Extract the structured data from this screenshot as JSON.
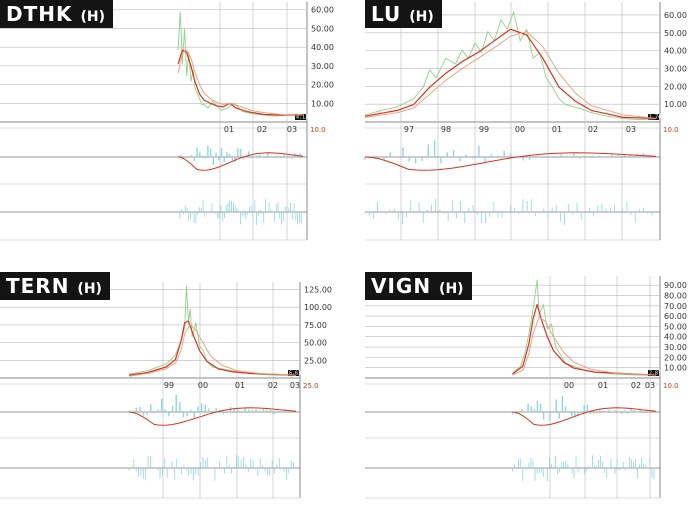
{
  "chart_data": [
    {
      "type": "line",
      "title": "DTHK",
      "title_suffix": "(H)",
      "y_ticks": [
        "10.00",
        "20.00",
        "30.00",
        "40.00",
        "50.00",
        "60.00"
      ],
      "ylim": [
        0,
        62
      ],
      "x_ticks": [
        "01",
        "02",
        "03"
      ],
      "scale_label": "10.0",
      "last_value_label": "4.13",
      "series": [
        {
          "values": [
            [
              0.1,
              0.62
            ],
            [
              0.11,
              0.95
            ],
            [
              0.12,
              0.5
            ],
            [
              0.13,
              0.8
            ],
            [
              0.14,
              0.4
            ],
            [
              0.15,
              0.6
            ],
            [
              0.16,
              0.35
            ],
            [
              0.17,
              0.45
            ],
            [
              0.18,
              0.28
            ],
            [
              0.19,
              0.25
            ],
            [
              0.2,
              0.2
            ],
            [
              0.21,
              0.15
            ],
            [
              0.22,
              0.15
            ],
            [
              0.24,
              0.12
            ],
            [
              0.26,
              0.18
            ],
            [
              0.28,
              0.14
            ],
            [
              0.3,
              0.1
            ],
            [
              0.33,
              0.12
            ],
            [
              0.36,
              0.16
            ],
            [
              0.4,
              0.09
            ],
            [
              0.45,
              0.07
            ],
            [
              0.5,
              0.06
            ],
            [
              0.55,
              0.05
            ],
            [
              0.6,
              0.06
            ],
            [
              0.65,
              0.07
            ],
            [
              0.68,
              0.06
            ]
          ]
        },
        {
          "values": [
            [
              0.1,
              0.5
            ],
            [
              0.12,
              0.62
            ],
            [
              0.14,
              0.6
            ],
            [
              0.16,
              0.48
            ],
            [
              0.18,
              0.34
            ],
            [
              0.2,
              0.24
            ],
            [
              0.22,
              0.19
            ],
            [
              0.25,
              0.16
            ],
            [
              0.28,
              0.14
            ],
            [
              0.31,
              0.13
            ],
            [
              0.34,
              0.16
            ],
            [
              0.37,
              0.12
            ],
            [
              0.42,
              0.09
            ],
            [
              0.5,
              0.065
            ],
            [
              0.58,
              0.06
            ],
            [
              0.68,
              0.06
            ]
          ]
        },
        {
          "values": [
            [
              0.1,
              0.42
            ],
            [
              0.12,
              0.6
            ],
            [
              0.14,
              0.62
            ],
            [
              0.16,
              0.55
            ],
            [
              0.18,
              0.42
            ],
            [
              0.2,
              0.32
            ],
            [
              0.22,
              0.25
            ],
            [
              0.25,
              0.2
            ],
            [
              0.28,
              0.17
            ],
            [
              0.31,
              0.15
            ],
            [
              0.34,
              0.16
            ],
            [
              0.38,
              0.14
            ],
            [
              0.44,
              0.1
            ],
            [
              0.5,
              0.08
            ],
            [
              0.58,
              0.065
            ],
            [
              0.68,
              0.06
            ]
          ]
        }
      ]
    },
    {
      "type": "line",
      "title": "LU",
      "title_suffix": "(H)",
      "y_ticks": [
        "10.00",
        "20.00",
        "30.00",
        "40.00",
        "50.00",
        "60.00"
      ],
      "ylim": [
        0,
        65
      ],
      "x_ticks": [
        "97",
        "98",
        "99",
        "00",
        "01",
        "02",
        "03"
      ],
      "scale_label": "10.0",
      "last_value_label": "1.74",
      "series": [
        {
          "values": [
            [
              0.0,
              0.06
            ],
            [
              0.05,
              0.1
            ],
            [
              0.1,
              0.13
            ],
            [
              0.15,
              0.2
            ],
            [
              0.18,
              0.3
            ],
            [
              0.2,
              0.45
            ],
            [
              0.22,
              0.38
            ],
            [
              0.25,
              0.55
            ],
            [
              0.28,
              0.5
            ],
            [
              0.3,
              0.62
            ],
            [
              0.32,
              0.55
            ],
            [
              0.34,
              0.68
            ],
            [
              0.36,
              0.6
            ],
            [
              0.38,
              0.78
            ],
            [
              0.4,
              0.7
            ],
            [
              0.42,
              0.88
            ],
            [
              0.44,
              0.8
            ],
            [
              0.46,
              0.95
            ],
            [
              0.48,
              0.7
            ],
            [
              0.5,
              0.8
            ],
            [
              0.52,
              0.55
            ],
            [
              0.54,
              0.6
            ],
            [
              0.56,
              0.38
            ],
            [
              0.58,
              0.3
            ],
            [
              0.6,
              0.2
            ],
            [
              0.62,
              0.15
            ],
            [
              0.66,
              0.12
            ],
            [
              0.7,
              0.08
            ],
            [
              0.75,
              0.05
            ],
            [
              0.8,
              0.03
            ],
            [
              0.85,
              0.02
            ],
            [
              0.9,
              0.03
            ]
          ]
        },
        {
          "values": [
            [
              0.0,
              0.05
            ],
            [
              0.1,
              0.1
            ],
            [
              0.15,
              0.15
            ],
            [
              0.2,
              0.3
            ],
            [
              0.25,
              0.42
            ],
            [
              0.3,
              0.52
            ],
            [
              0.35,
              0.6
            ],
            [
              0.4,
              0.7
            ],
            [
              0.45,
              0.8
            ],
            [
              0.5,
              0.75
            ],
            [
              0.55,
              0.55
            ],
            [
              0.6,
              0.3
            ],
            [
              0.65,
              0.18
            ],
            [
              0.7,
              0.1
            ],
            [
              0.8,
              0.04
            ],
            [
              0.9,
              0.03
            ]
          ]
        },
        {
          "values": [
            [
              0.0,
              0.04
            ],
            [
              0.1,
              0.08
            ],
            [
              0.15,
              0.12
            ],
            [
              0.2,
              0.24
            ],
            [
              0.25,
              0.36
            ],
            [
              0.3,
              0.46
            ],
            [
              0.35,
              0.55
            ],
            [
              0.4,
              0.64
            ],
            [
              0.45,
              0.74
            ],
            [
              0.5,
              0.78
            ],
            [
              0.55,
              0.65
            ],
            [
              0.6,
              0.42
            ],
            [
              0.65,
              0.25
            ],
            [
              0.7,
              0.14
            ],
            [
              0.8,
              0.06
            ],
            [
              0.9,
              0.03
            ]
          ]
        }
      ]
    },
    {
      "type": "line",
      "title": "TERN",
      "title_suffix": "(H)",
      "y_ticks": [
        "25.00",
        "50.00",
        "75.00",
        "100.00",
        "125.00"
      ],
      "ylim": [
        0,
        130
      ],
      "x_ticks": [
        "99",
        "00",
        "01",
        "02",
        "03"
      ],
      "scale_label": "25.0",
      "last_value_label": "6.63",
      "series": [
        {
          "values": [
            [
              0.0,
              0.04
            ],
            [
              0.1,
              0.08
            ],
            [
              0.2,
              0.15
            ],
            [
              0.25,
              0.25
            ],
            [
              0.28,
              0.4
            ],
            [
              0.3,
              0.55
            ],
            [
              0.31,
              1.0
            ],
            [
              0.32,
              0.6
            ],
            [
              0.33,
              0.75
            ],
            [
              0.34,
              0.45
            ],
            [
              0.36,
              0.6
            ],
            [
              0.38,
              0.35
            ],
            [
              0.4,
              0.3
            ],
            [
              0.42,
              0.18
            ],
            [
              0.45,
              0.12
            ],
            [
              0.5,
              0.1
            ],
            [
              0.55,
              0.08
            ],
            [
              0.6,
              0.06
            ],
            [
              0.7,
              0.04
            ],
            [
              0.8,
              0.03
            ],
            [
              0.9,
              0.03
            ]
          ]
        },
        {
          "values": [
            [
              0.0,
              0.03
            ],
            [
              0.1,
              0.06
            ],
            [
              0.2,
              0.12
            ],
            [
              0.25,
              0.2
            ],
            [
              0.28,
              0.4
            ],
            [
              0.3,
              0.6
            ],
            [
              0.32,
              0.62
            ],
            [
              0.35,
              0.45
            ],
            [
              0.38,
              0.3
            ],
            [
              0.42,
              0.18
            ],
            [
              0.48,
              0.1
            ],
            [
              0.55,
              0.07
            ],
            [
              0.65,
              0.05
            ],
            [
              0.9,
              0.03
            ]
          ]
        },
        {
          "values": [
            [
              0.0,
              0.02
            ],
            [
              0.1,
              0.05
            ],
            [
              0.2,
              0.1
            ],
            [
              0.25,
              0.16
            ],
            [
              0.28,
              0.3
            ],
            [
              0.3,
              0.48
            ],
            [
              0.33,
              0.58
            ],
            [
              0.36,
              0.52
            ],
            [
              0.4,
              0.38
            ],
            [
              0.44,
              0.24
            ],
            [
              0.5,
              0.14
            ],
            [
              0.58,
              0.08
            ],
            [
              0.7,
              0.05
            ],
            [
              0.9,
              0.03
            ]
          ]
        }
      ]
    },
    {
      "type": "line",
      "title": "VIGN",
      "title_suffix": "(H)",
      "y_ticks": [
        "10.00",
        "20.00",
        "30.00",
        "40.00",
        "50.00",
        "60.00",
        "70.00",
        "80.00",
        "90.00"
      ],
      "ylim": [
        0,
        95
      ],
      "x_ticks": [
        "00",
        "01",
        "02",
        "03"
      ],
      "scale_label": "10.0",
      "last_value_label": "2.87",
      "series": [
        {
          "values": [
            [
              0.2,
              0.05
            ],
            [
              0.24,
              0.12
            ],
            [
              0.26,
              0.25
            ],
            [
              0.28,
              0.45
            ],
            [
              0.3,
              0.7
            ],
            [
              0.32,
              1.0
            ],
            [
              0.33,
              0.65
            ],
            [
              0.35,
              0.75
            ],
            [
              0.37,
              0.5
            ],
            [
              0.39,
              0.55
            ],
            [
              0.41,
              0.32
            ],
            [
              0.43,
              0.25
            ],
            [
              0.46,
              0.15
            ],
            [
              0.5,
              0.12
            ],
            [
              0.55,
              0.08
            ],
            [
              0.6,
              0.06
            ],
            [
              0.7,
              0.04
            ],
            [
              0.8,
              0.03
            ],
            [
              0.9,
              0.03
            ]
          ]
        },
        {
          "values": [
            [
              0.2,
              0.04
            ],
            [
              0.25,
              0.12
            ],
            [
              0.28,
              0.35
            ],
            [
              0.3,
              0.6
            ],
            [
              0.32,
              0.75
            ],
            [
              0.34,
              0.6
            ],
            [
              0.37,
              0.42
            ],
            [
              0.4,
              0.28
            ],
            [
              0.45,
              0.16
            ],
            [
              0.5,
              0.1
            ],
            [
              0.6,
              0.06
            ],
            [
              0.9,
              0.03
            ]
          ]
        },
        {
          "values": [
            [
              0.2,
              0.03
            ],
            [
              0.25,
              0.08
            ],
            [
              0.28,
              0.25
            ],
            [
              0.3,
              0.45
            ],
            [
              0.33,
              0.62
            ],
            [
              0.36,
              0.58
            ],
            [
              0.4,
              0.42
            ],
            [
              0.45,
              0.26
            ],
            [
              0.5,
              0.16
            ],
            [
              0.58,
              0.09
            ],
            [
              0.7,
              0.05
            ],
            [
              0.9,
              0.03
            ]
          ]
        }
      ]
    }
  ],
  "colors": {
    "price": "#8fd18a",
    "avg_short": "#d9331f",
    "avg_long": "#f09a7a",
    "oscillator": "#8fd6e0",
    "grid": "#b9b9b9",
    "badge_bg": "#141414"
  }
}
